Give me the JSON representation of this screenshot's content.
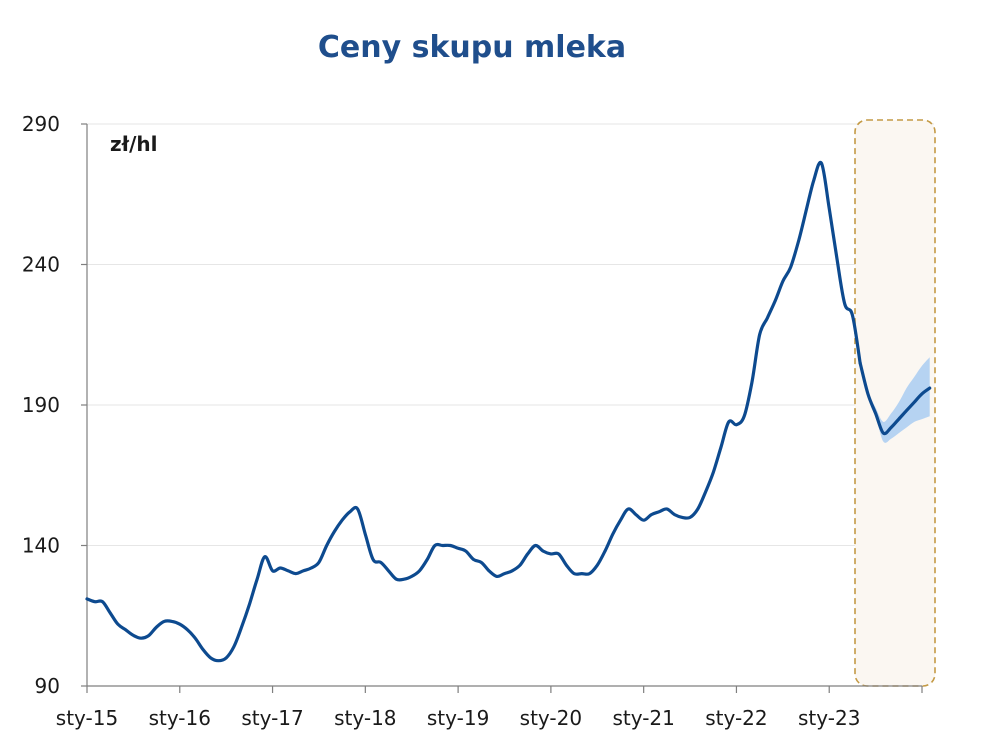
{
  "chart_data": {
    "type": "line",
    "title": "Ceny skupu mleka",
    "unit_label": "zł/hl",
    "xlabel": "",
    "ylabel": "",
    "ylim": [
      90,
      290
    ],
    "yticks": [
      90,
      140,
      190,
      240,
      290
    ],
    "xticks": [
      {
        "label": "sty-15",
        "month": 0
      },
      {
        "label": "sty-16",
        "month": 12
      },
      {
        "label": "sty-17",
        "month": 24
      },
      {
        "label": "sty-18",
        "month": 36
      },
      {
        "label": "sty-19",
        "month": 48
      },
      {
        "label": "sty-20",
        "month": 60
      },
      {
        "label": "sty-21",
        "month": 72
      },
      {
        "label": "sty-22",
        "month": 84
      },
      {
        "label": "sty-23",
        "month": 96
      }
    ],
    "grid": true,
    "colors": {
      "title": "#1f4e8c",
      "line": "#0d4a8f",
      "band": "#a9cdf2",
      "forecast_fill": "#fbf7f2",
      "forecast_border": "#c49a45",
      "grid": "#e6e6e6",
      "axis": "#7f7f7f"
    },
    "series": [
      {
        "start": "2015-01",
        "values": [
          121,
          120,
          120,
          116,
          112,
          110,
          108,
          107,
          108,
          111,
          113,
          113,
          112,
          110,
          107,
          103,
          100,
          99,
          100,
          104,
          111,
          119,
          128,
          136,
          131,
          132,
          131,
          130,
          131,
          132,
          134,
          140,
          145,
          149,
          152,
          153,
          144,
          135,
          134,
          131,
          128,
          128,
          129,
          131,
          135,
          140,
          140,
          140,
          139,
          138,
          135,
          134,
          131,
          129,
          130,
          131,
          133,
          137,
          140,
          138,
          137,
          137,
          133,
          130,
          130,
          130,
          133,
          138,
          144,
          149,
          153,
          151,
          149,
          151,
          152,
          153,
          151,
          150,
          150,
          153,
          159,
          166,
          175,
          184,
          183,
          186,
          198,
          215,
          221,
          227,
          234,
          239,
          248,
          259,
          270,
          276,
          260,
          242,
          226,
          222,
          205
        ]
      }
    ],
    "forecast": {
      "start": "2023-05",
      "values": [
        205,
        194,
        187,
        180,
        182,
        185,
        188,
        191,
        194,
        196
      ],
      "lower": [
        205,
        194,
        186,
        177,
        178,
        180,
        182,
        184,
        185,
        186
      ],
      "upper": [
        205,
        195,
        189,
        184,
        187,
        191,
        196,
        200,
        204,
        207
      ]
    }
  }
}
